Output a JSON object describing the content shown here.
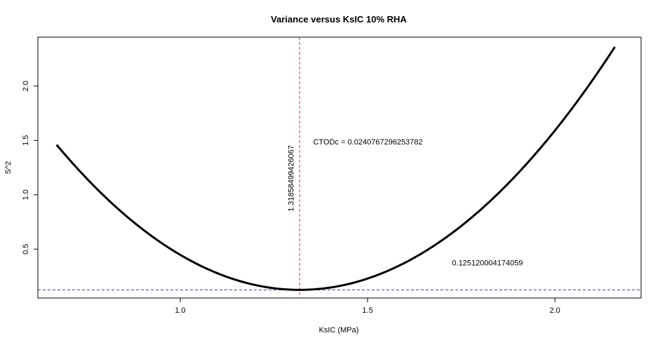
{
  "chart_data": {
    "type": "line",
    "title": "Variance versus KsIC 10% RHA",
    "xlabel": "KsIC (MPa)",
    "ylabel": "S^2",
    "xlim": [
      0.62,
      2.23
    ],
    "ylim": [
      0.05,
      2.45
    ],
    "x_ticks": [
      1.0,
      1.5,
      2.0
    ],
    "x_tick_labels": [
      "1.0",
      "1.5",
      "2.0"
    ],
    "y_ticks": [
      0.5,
      1.0,
      1.5,
      2.0
    ],
    "y_tick_labels": [
      "0.5",
      "1.0",
      "1.5",
      "2.0"
    ],
    "grid": false,
    "curve": {
      "color": "#000000",
      "x_min": 0.67,
      "x_max": 2.16,
      "vertex_x": 1.31858499426067,
      "vertex_y": 0.125120004174059,
      "left_point": [
        0.67,
        1.46
      ],
      "right_point": [
        2.16,
        2.36
      ]
    },
    "vline": {
      "x": 1.31858499426067,
      "color": "#cc3333",
      "style": "dashed"
    },
    "hline": {
      "y": 0.125120004174059,
      "color": "#3333cc",
      "style": "dashed"
    },
    "annotations": {
      "cto": {
        "text": "CTODc = 0.0240767296253782",
        "x": 1.355,
        "y": 1.49
      },
      "vline_label": {
        "text": "1.31858499426067",
        "x": 1.295,
        "y": 1.15
      },
      "min_label": {
        "text": "0.125120004174059",
        "x": 1.82,
        "y": 0.375
      }
    }
  }
}
